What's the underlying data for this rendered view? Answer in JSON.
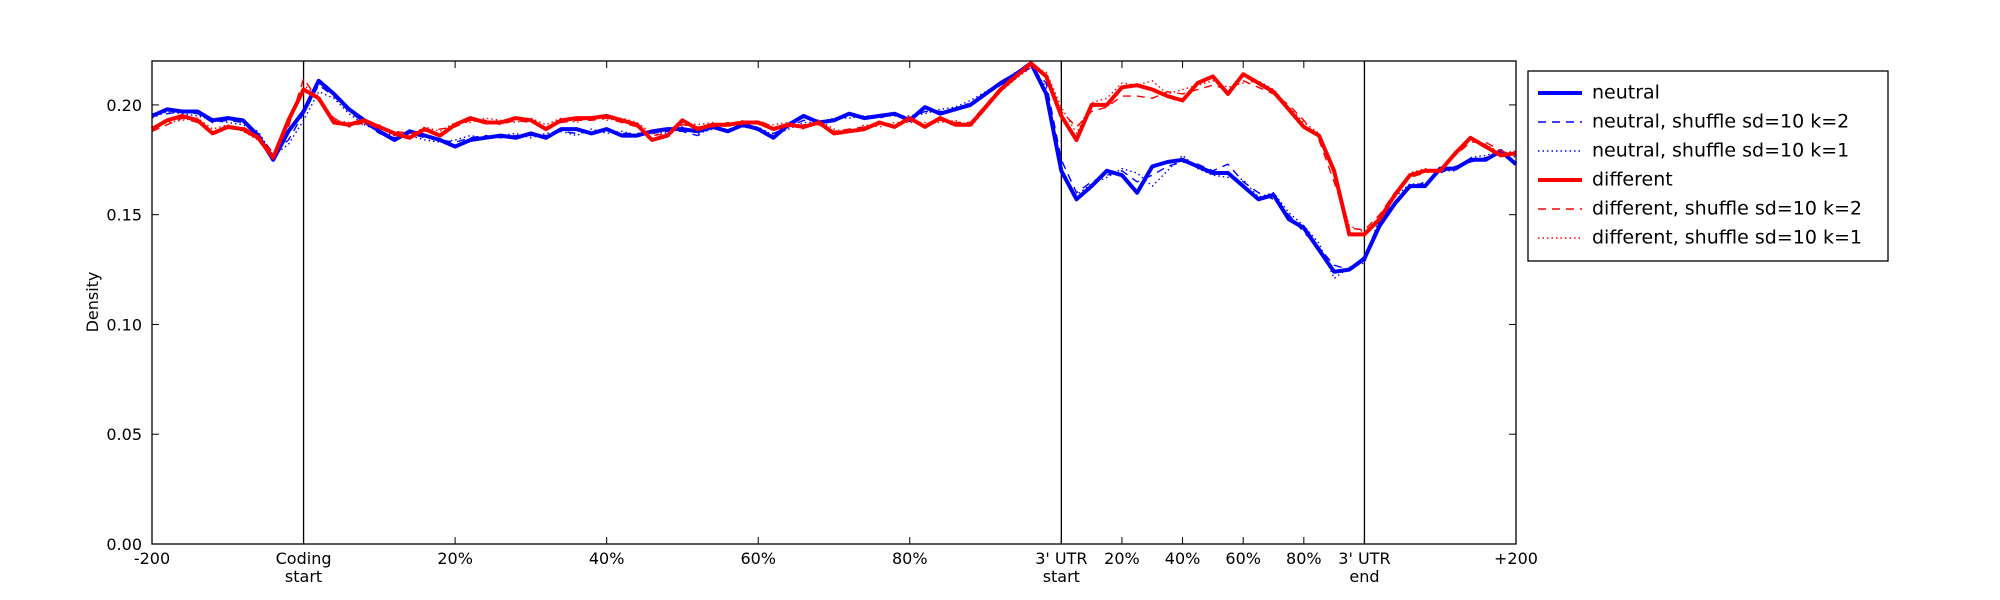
{
  "chart_data": {
    "type": "line",
    "ylabel": "Density",
    "xlim": [
      0,
      900
    ],
    "ylim": [
      0,
      0.22
    ],
    "xticks": [
      {
        "value": 0,
        "label": "-200"
      },
      {
        "value": 100,
        "label": "Coding\nstart"
      },
      {
        "value": 200,
        "label": "20%"
      },
      {
        "value": 300,
        "label": "40%"
      },
      {
        "value": 400,
        "label": "60%"
      },
      {
        "value": 500,
        "label": "80%"
      },
      {
        "value": 600,
        "label": "3' UTR\nstart"
      },
      {
        "value": 640,
        "label": "20%"
      },
      {
        "value": 680,
        "label": "40%"
      },
      {
        "value": 720,
        "label": "60%"
      },
      {
        "value": 760,
        "label": "80%"
      },
      {
        "value": 800,
        "label": "3' UTR\nend"
      },
      {
        "value": 900,
        "label": "+200"
      }
    ],
    "yticks": [
      {
        "value": 0,
        "label": "0.00"
      },
      {
        "value": 0.05,
        "label": "0.05"
      },
      {
        "value": 0.1,
        "label": "0.10"
      },
      {
        "value": 0.15,
        "label": "0.15"
      },
      {
        "value": 0.2,
        "label": "0.20"
      }
    ],
    "vlines": [
      100,
      600,
      800
    ],
    "legend": "outside-right",
    "x": [
      0,
      10,
      20,
      30,
      40,
      50,
      60,
      70,
      80,
      90,
      100,
      110,
      120,
      130,
      140,
      150,
      160,
      170,
      180,
      190,
      200,
      210,
      220,
      230,
      240,
      250,
      260,
      270,
      280,
      290,
      300,
      310,
      320,
      330,
      340,
      350,
      360,
      370,
      380,
      390,
      400,
      410,
      420,
      430,
      440,
      450,
      460,
      470,
      480,
      490,
      500,
      510,
      520,
      530,
      540,
      550,
      560,
      570,
      580,
      590,
      600,
      610,
      620,
      630,
      640,
      650,
      660,
      670,
      680,
      690,
      700,
      710,
      720,
      730,
      740,
      750,
      760,
      770,
      780,
      790,
      800,
      810,
      820,
      830,
      840,
      850,
      860,
      870,
      880,
      890,
      900
    ],
    "series": [
      {
        "name": "neutral",
        "color": "#0000ff",
        "linestyle": "solid",
        "linewidth": 4,
        "values": [
          0.195,
          0.198,
          0.197,
          0.197,
          0.193,
          0.194,
          0.193,
          0.186,
          0.175,
          0.188,
          0.197,
          0.211,
          0.205,
          0.198,
          0.193,
          0.188,
          0.184,
          0.188,
          0.186,
          0.184,
          0.181,
          0.184,
          0.185,
          0.186,
          0.185,
          0.187,
          0.185,
          0.189,
          0.189,
          0.187,
          0.189,
          0.186,
          0.186,
          0.188,
          0.189,
          0.189,
          0.188,
          0.19,
          0.188,
          0.191,
          0.189,
          0.185,
          0.191,
          0.195,
          0.192,
          0.193,
          0.196,
          0.194,
          0.195,
          0.196,
          0.193,
          0.199,
          0.196,
          0.198,
          0.2,
          0.205,
          0.21,
          0.214,
          0.219,
          0.205,
          0.17,
          0.157,
          0.163,
          0.17,
          0.168,
          0.16,
          0.172,
          0.174,
          0.175,
          0.172,
          0.169,
          0.169,
          0.163,
          0.157,
          0.159,
          0.148,
          0.144,
          0.134,
          0.124,
          0.125,
          0.13,
          0.145,
          0.155,
          0.163,
          0.163,
          0.171,
          0.171,
          0.175,
          0.175,
          0.179,
          0.173
        ]
      },
      {
        "name": "neutral, shuffle sd=10 k=2",
        "color": "#0000ff",
        "linestyle": "dashed",
        "linewidth": 1.4,
        "values": [
          0.196,
          0.196,
          0.197,
          0.196,
          0.192,
          0.193,
          0.192,
          0.187,
          0.178,
          0.184,
          0.196,
          0.209,
          0.204,
          0.197,
          0.192,
          0.187,
          0.185,
          0.187,
          0.185,
          0.184,
          0.183,
          0.185,
          0.186,
          0.185,
          0.186,
          0.186,
          0.186,
          0.188,
          0.187,
          0.188,
          0.188,
          0.187,
          0.187,
          0.187,
          0.188,
          0.188,
          0.186,
          0.19,
          0.188,
          0.19,
          0.189,
          0.187,
          0.19,
          0.193,
          0.193,
          0.193,
          0.195,
          0.194,
          0.194,
          0.196,
          0.194,
          0.197,
          0.197,
          0.198,
          0.201,
          0.205,
          0.209,
          0.213,
          0.217,
          0.21,
          0.175,
          0.16,
          0.165,
          0.168,
          0.17,
          0.165,
          0.168,
          0.172,
          0.174,
          0.173,
          0.17,
          0.173,
          0.165,
          0.16,
          0.157,
          0.15,
          0.142,
          0.135,
          0.127,
          0.125,
          0.131,
          0.147,
          0.156,
          0.162,
          0.165,
          0.169,
          0.172,
          0.174,
          0.176,
          0.178,
          0.177
        ]
      },
      {
        "name": "neutral, shuffle sd=10 k=1",
        "color": "#0000ff",
        "linestyle": "dotted",
        "linewidth": 1.4,
        "values": [
          0.194,
          0.197,
          0.196,
          0.195,
          0.193,
          0.192,
          0.191,
          0.188,
          0.177,
          0.182,
          0.193,
          0.206,
          0.203,
          0.196,
          0.191,
          0.188,
          0.186,
          0.186,
          0.184,
          0.183,
          0.184,
          0.186,
          0.185,
          0.186,
          0.187,
          0.185,
          0.187,
          0.188,
          0.186,
          0.189,
          0.187,
          0.188,
          0.186,
          0.188,
          0.187,
          0.19,
          0.187,
          0.189,
          0.189,
          0.19,
          0.19,
          0.186,
          0.189,
          0.192,
          0.192,
          0.194,
          0.194,
          0.195,
          0.195,
          0.195,
          0.195,
          0.196,
          0.198,
          0.199,
          0.202,
          0.206,
          0.21,
          0.215,
          0.218,
          0.208,
          0.168,
          0.159,
          0.164,
          0.167,
          0.171,
          0.169,
          0.163,
          0.17,
          0.177,
          0.171,
          0.168,
          0.167,
          0.166,
          0.158,
          0.16,
          0.151,
          0.145,
          0.137,
          0.121,
          0.126,
          0.128,
          0.149,
          0.158,
          0.164,
          0.164,
          0.17,
          0.17,
          0.176,
          0.177,
          0.179,
          0.176
        ]
      },
      {
        "name": "different",
        "color": "#ff0000",
        "linestyle": "solid",
        "linewidth": 4,
        "values": [
          0.189,
          0.193,
          0.195,
          0.193,
          0.187,
          0.19,
          0.189,
          0.185,
          0.176,
          0.193,
          0.207,
          0.203,
          0.192,
          0.191,
          0.193,
          0.19,
          0.187,
          0.185,
          0.189,
          0.186,
          0.191,
          0.194,
          0.192,
          0.192,
          0.194,
          0.193,
          0.189,
          0.193,
          0.194,
          0.194,
          0.195,
          0.193,
          0.191,
          0.184,
          0.186,
          0.193,
          0.189,
          0.191,
          0.191,
          0.192,
          0.192,
          0.189,
          0.191,
          0.19,
          0.192,
          0.187,
          0.188,
          0.189,
          0.192,
          0.19,
          0.194,
          0.19,
          0.194,
          0.191,
          0.191,
          0.199,
          0.207,
          0.213,
          0.219,
          0.213,
          0.195,
          0.184,
          0.2,
          0.2,
          0.208,
          0.209,
          0.207,
          0.204,
          0.202,
          0.21,
          0.213,
          0.205,
          0.214,
          0.21,
          0.206,
          0.198,
          0.19,
          0.186,
          0.17,
          0.141,
          0.141,
          0.148,
          0.159,
          0.168,
          0.17,
          0.17,
          0.178,
          0.185,
          0.181,
          0.177,
          0.178
        ]
      },
      {
        "name": "different, shuffle sd=10 k=2",
        "color": "#ff0000",
        "linestyle": "dashed",
        "linewidth": 1.4,
        "values": [
          0.188,
          0.191,
          0.194,
          0.192,
          0.188,
          0.189,
          0.19,
          0.186,
          0.178,
          0.19,
          0.212,
          0.202,
          0.194,
          0.19,
          0.192,
          0.189,
          0.188,
          0.187,
          0.188,
          0.189,
          0.19,
          0.193,
          0.193,
          0.191,
          0.193,
          0.192,
          0.19,
          0.192,
          0.193,
          0.193,
          0.194,
          0.192,
          0.19,
          0.186,
          0.187,
          0.191,
          0.19,
          0.19,
          0.192,
          0.191,
          0.193,
          0.19,
          0.19,
          0.191,
          0.191,
          0.188,
          0.189,
          0.19,
          0.191,
          0.191,
          0.193,
          0.191,
          0.193,
          0.192,
          0.192,
          0.2,
          0.208,
          0.214,
          0.218,
          0.214,
          0.197,
          0.19,
          0.197,
          0.199,
          0.204,
          0.204,
          0.203,
          0.206,
          0.205,
          0.207,
          0.209,
          0.207,
          0.211,
          0.208,
          0.205,
          0.2,
          0.193,
          0.184,
          0.165,
          0.144,
          0.143,
          0.15,
          0.16,
          0.167,
          0.169,
          0.171,
          0.177,
          0.183,
          0.183,
          0.179,
          0.177
        ]
      },
      {
        "name": "different, shuffle sd=10 k=1",
        "color": "#ff0000",
        "linestyle": "dotted",
        "linewidth": 1.4,
        "values": [
          0.19,
          0.192,
          0.193,
          0.194,
          0.189,
          0.191,
          0.188,
          0.184,
          0.177,
          0.191,
          0.209,
          0.204,
          0.193,
          0.192,
          0.191,
          0.191,
          0.186,
          0.186,
          0.19,
          0.188,
          0.192,
          0.192,
          0.194,
          0.193,
          0.192,
          0.194,
          0.191,
          0.194,
          0.192,
          0.195,
          0.193,
          0.194,
          0.192,
          0.187,
          0.185,
          0.192,
          0.191,
          0.192,
          0.19,
          0.193,
          0.191,
          0.191,
          0.192,
          0.189,
          0.193,
          0.189,
          0.187,
          0.191,
          0.19,
          0.192,
          0.192,
          0.192,
          0.192,
          0.193,
          0.19,
          0.198,
          0.206,
          0.212,
          0.217,
          0.215,
          0.199,
          0.187,
          0.201,
          0.203,
          0.21,
          0.209,
          0.211,
          0.205,
          0.207,
          0.209,
          0.211,
          0.208,
          0.21,
          0.211,
          0.207,
          0.199,
          0.192,
          0.187,
          0.168,
          0.145,
          0.142,
          0.149,
          0.158,
          0.169,
          0.171,
          0.169,
          0.179,
          0.184,
          0.182,
          0.178,
          0.179
        ]
      }
    ]
  }
}
